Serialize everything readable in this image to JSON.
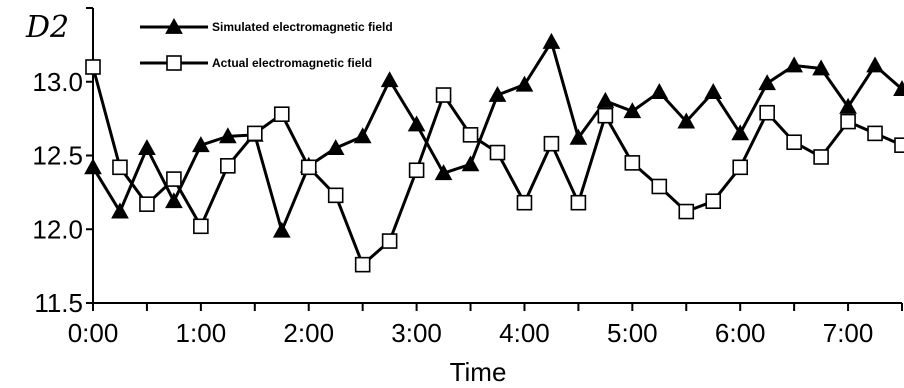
{
  "chart_data": {
    "type": "line",
    "ylabel": "D2",
    "xlabel": "Time",
    "ylim": [
      11.5,
      13.5
    ],
    "y_ticks": [
      {
        "value": 11.5,
        "label": "11.5"
      },
      {
        "value": 12.0,
        "label": "12.0"
      },
      {
        "value": 12.5,
        "label": "12.5"
      },
      {
        "value": 13.0,
        "label": "13.0"
      }
    ],
    "x_ticks": [
      {
        "value": 0,
        "label": "0:00"
      },
      {
        "value": 1,
        "label": "1:00"
      },
      {
        "value": 2,
        "label": "2:00"
      },
      {
        "value": 3,
        "label": "3:00"
      },
      {
        "value": 4,
        "label": "4:00"
      },
      {
        "value": 5,
        "label": "5:00"
      },
      {
        "value": 6,
        "label": "6:00"
      },
      {
        "value": 7,
        "label": "7:00"
      }
    ],
    "xlim_hours": [
      0,
      7.5
    ],
    "x_hours": [
      0,
      0.25,
      0.5,
      0.75,
      1.0,
      1.25,
      1.5,
      1.75,
      2.0,
      2.25,
      2.5,
      2.75,
      3.0,
      3.25,
      3.5,
      3.75,
      4.0,
      4.25,
      4.5,
      4.75,
      5.0,
      5.25,
      5.5,
      5.75,
      6.0,
      6.25,
      6.5,
      6.75,
      7.0,
      7.25,
      7.5
    ],
    "grid": false,
    "legend_position": "top-left",
    "series": [
      {
        "name": "Simulated electromagnetic field",
        "marker": "filled-triangle",
        "values": [
          12.42,
          12.12,
          12.55,
          12.19,
          12.57,
          12.63,
          12.64,
          11.99,
          12.43,
          12.55,
          12.63,
          13.01,
          12.71,
          12.38,
          12.44,
          12.91,
          12.98,
          13.27,
          12.62,
          12.87,
          12.8,
          12.93,
          12.73,
          12.93,
          12.65,
          12.99,
          13.11,
          13.09,
          12.83,
          13.11,
          12.95
        ]
      },
      {
        "name": "Actual electromagnetic field",
        "marker": "open-square",
        "values": [
          13.1,
          12.42,
          12.17,
          12.34,
          12.02,
          12.43,
          12.65,
          12.78,
          12.42,
          12.23,
          11.76,
          11.92,
          12.4,
          12.91,
          12.64,
          12.52,
          12.18,
          12.58,
          12.18,
          12.77,
          12.45,
          12.29,
          12.12,
          12.19,
          12.42,
          12.79,
          12.59,
          12.49,
          12.73,
          12.65,
          12.57
        ]
      }
    ]
  }
}
